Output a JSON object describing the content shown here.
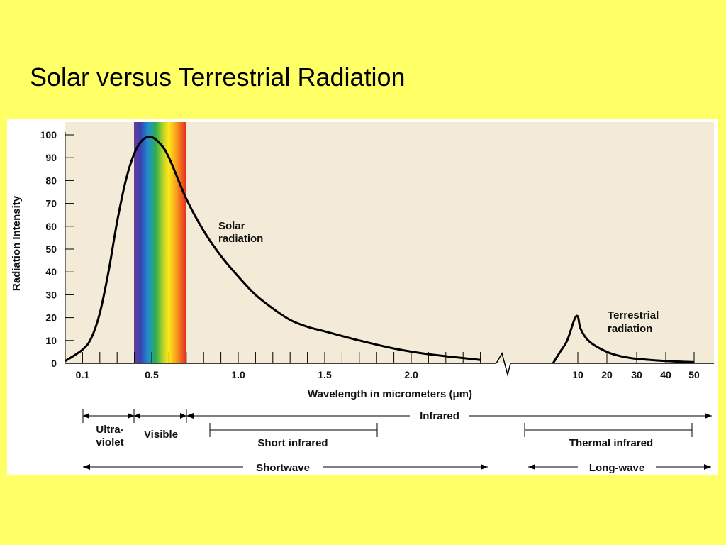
{
  "slide": {
    "title": "Solar versus Terrestrial Radiation"
  },
  "colors": {
    "slide_background": "#ffff66",
    "plot_background": "#f3ebd7",
    "curve": "#000000"
  },
  "chart_data": {
    "type": "line",
    "ylabel": "Radiation Intensity",
    "xlabel": "Wavelength in micrometers (μm)",
    "ylim": [
      0,
      100
    ],
    "yticks": [
      0,
      10,
      20,
      30,
      40,
      50,
      60,
      70,
      80,
      90,
      100
    ],
    "x_scale": "broken: linear 0–2.4 μm, then compressed 10–50 μm",
    "xticks_short": [
      "0.1",
      "0.5",
      "1.0",
      "1.5",
      "2.0"
    ],
    "xticks_long": [
      "10",
      "20",
      "30",
      "40",
      "50"
    ],
    "grid": false,
    "visible_band": {
      "from_um": 0.4,
      "to_um": 0.7,
      "fill": "rainbow gradient"
    },
    "series": [
      {
        "name": "Solar radiation",
        "x": [
          0.0,
          0.1,
          0.15,
          0.2,
          0.25,
          0.3,
          0.35,
          0.4,
          0.45,
          0.5,
          0.55,
          0.6,
          0.7,
          0.8,
          0.9,
          1.0,
          1.1,
          1.2,
          1.3,
          1.4,
          1.5,
          1.7,
          1.9,
          2.1,
          2.4
        ],
        "y": [
          1,
          6,
          11,
          22,
          40,
          62,
          80,
          92,
          98,
          99,
          96,
          90,
          72,
          58,
          47,
          38,
          30,
          24,
          19,
          16,
          14,
          10,
          6.5,
          4,
          1.5
        ]
      },
      {
        "name": "Terrestrial radiation",
        "x": [
          3.0,
          5.0,
          7.0,
          9.0,
          10.0,
          11.0,
          14.0,
          20.0,
          25.0,
          30.0,
          40.0,
          50.0
        ],
        "y": [
          0,
          5,
          10,
          19,
          20.5,
          15,
          9.5,
          5,
          3,
          2,
          1,
          0.5
        ]
      }
    ],
    "annotations": {
      "solar_line1": "Solar",
      "solar_line2": "radiation",
      "terrestrial_line1": "Terrestrial",
      "terrestrial_line2": "radiation"
    },
    "regions": {
      "ultraviolet_line1": "Ultra-",
      "ultraviolet_line2": "violet",
      "visible": "Visible",
      "infrared": "Infrared",
      "short_infrared": "Short infrared",
      "thermal_infrared": "Thermal infrared",
      "shortwave": "Shortwave",
      "longwave": "Long-wave"
    }
  }
}
